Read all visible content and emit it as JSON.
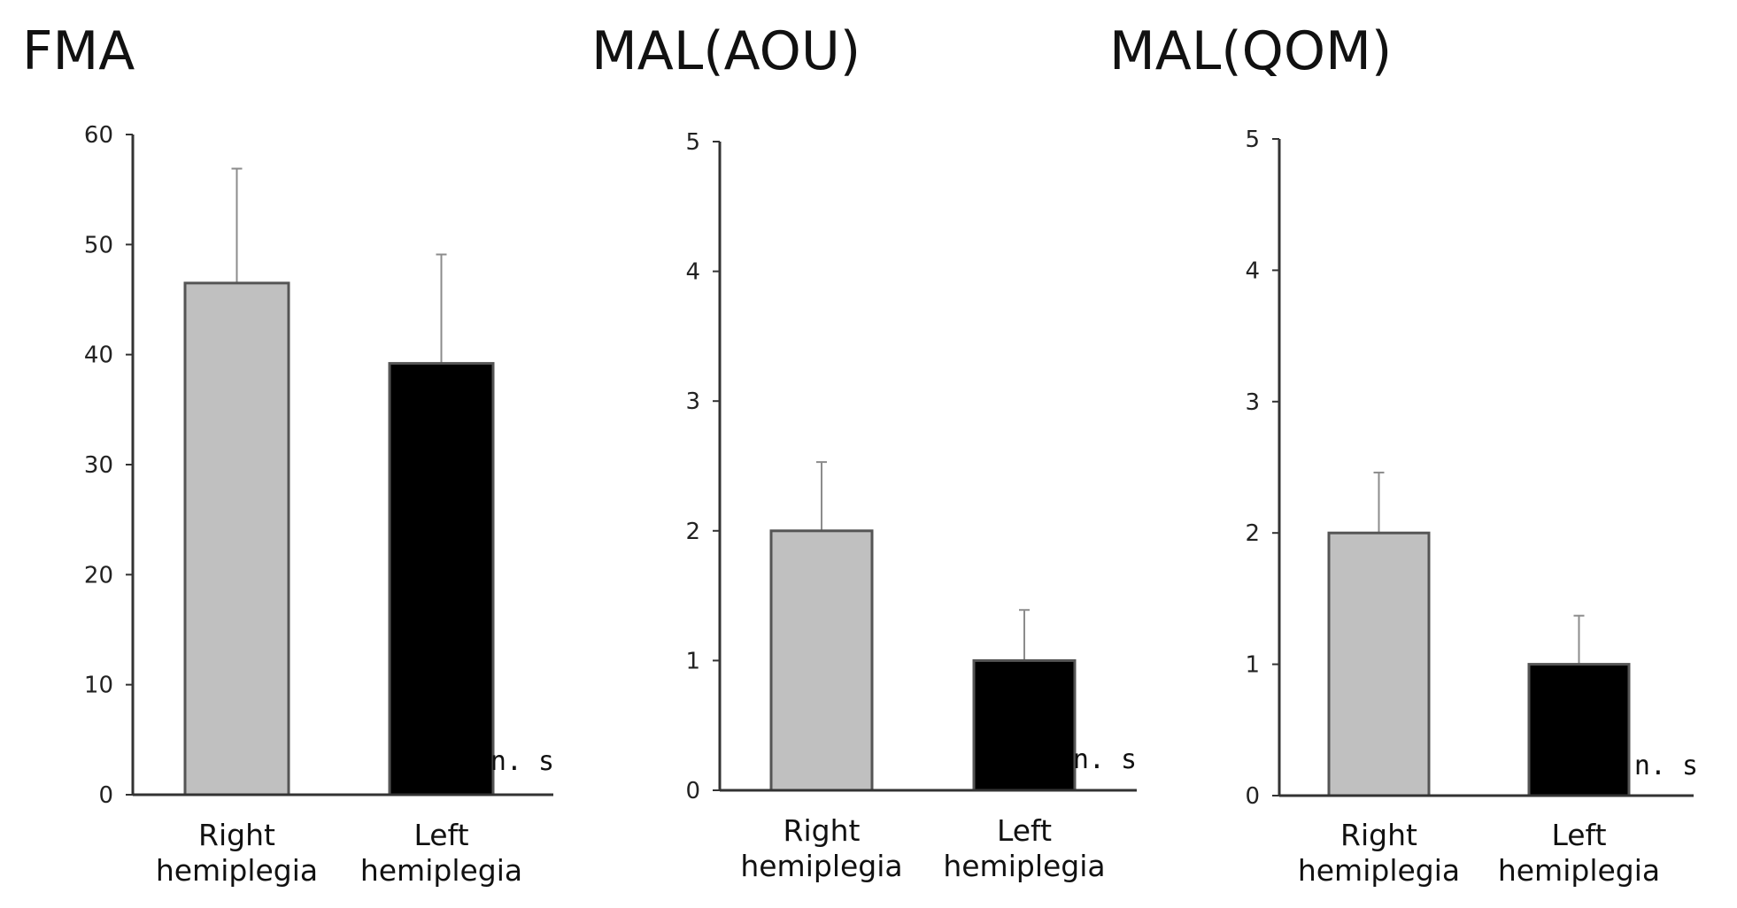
{
  "chart_data": [
    {
      "type": "bar",
      "title": "FMA",
      "categories": [
        "Right hemiplegia",
        "Left hemiplegia"
      ],
      "category_lines": [
        [
          "Right",
          "hemiplegia"
        ],
        [
          "Left",
          "hemiplegia"
        ]
      ],
      "values": [
        46.5,
        39.2
      ],
      "errors": [
        10.4,
        9.9
      ],
      "ylim": [
        0,
        60
      ],
      "yticks": [
        0,
        10,
        20,
        30,
        40,
        50,
        60
      ],
      "bar_colors": [
        "#c0c0c0",
        "#000000"
      ],
      "annotation": "n. s",
      "xlabel": "",
      "ylabel": ""
    },
    {
      "type": "bar",
      "title": "MAL(AOU)",
      "categories": [
        "Right hemiplegia",
        "Left hemiplegia"
      ],
      "category_lines": [
        [
          "Right",
          "hemiplegia"
        ],
        [
          "Left",
          "hemiplegia"
        ]
      ],
      "values": [
        2.0,
        1.0
      ],
      "errors": [
        0.53,
        0.39
      ],
      "ylim": [
        0,
        5
      ],
      "yticks": [
        0,
        1,
        2,
        3,
        4,
        5
      ],
      "bar_colors": [
        "#c0c0c0",
        "#000000"
      ],
      "annotation": "n. s",
      "xlabel": "",
      "ylabel": ""
    },
    {
      "type": "bar",
      "title": "MAL(QOM)",
      "categories": [
        "Right hemiplegia",
        "Left hemiplegia"
      ],
      "category_lines": [
        [
          "Right",
          "hemiplegia"
        ],
        [
          "Left",
          "hemiplegia"
        ]
      ],
      "values": [
        2.0,
        1.0
      ],
      "errors": [
        0.46,
        0.37
      ],
      "ylim": [
        0,
        5
      ],
      "yticks": [
        0,
        1,
        2,
        3,
        4,
        5
      ],
      "bar_colors": [
        "#c0c0c0",
        "#000000"
      ],
      "annotation": "n. s",
      "xlabel": "",
      "ylabel": ""
    }
  ]
}
